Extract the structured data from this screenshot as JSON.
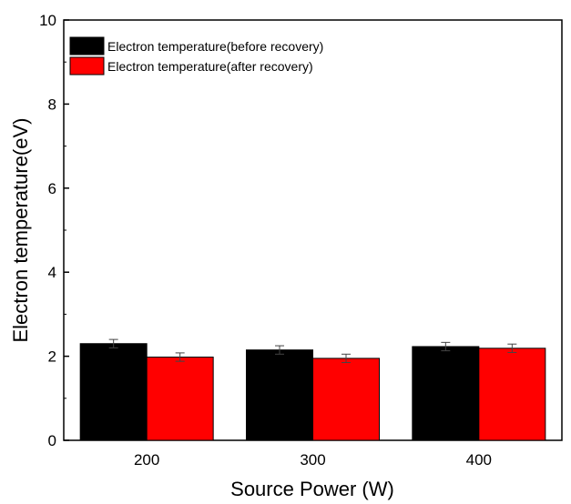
{
  "chart_data": {
    "type": "bar",
    "categories": [
      "200",
      "300",
      "400"
    ],
    "series": [
      {
        "name": "Electron temperature(before recovery)",
        "values": [
          2.3,
          2.15,
          2.23
        ],
        "errors": [
          0.1,
          0.1,
          0.1
        ],
        "color": "#000000"
      },
      {
        "name": "Electron temperature(after recovery)",
        "values": [
          1.98,
          1.95,
          2.19
        ],
        "errors": [
          0.1,
          0.1,
          0.1
        ],
        "color": "#ff0000"
      }
    ],
    "xlabel": "Source Power (W)",
    "ylabel": "Electron temperature(eV)",
    "ylim": [
      0,
      10
    ],
    "yticks": [
      "0",
      "2",
      "4",
      "6",
      "8",
      "10"
    ],
    "legend_position": "top-left",
    "grid": false
  }
}
